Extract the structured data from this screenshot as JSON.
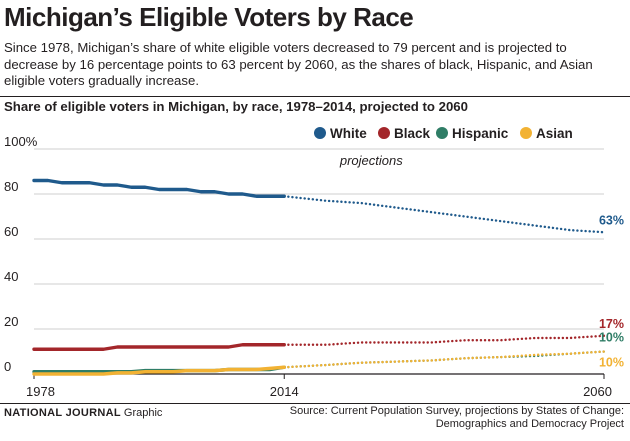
{
  "header": {
    "title": "Michigan’s Eligible Voters by Race",
    "dek": "Since 1978, Michigan’s share of white eligible voters decreased to 79 percent and is projected to decrease by 16 percentage points to 63 percent by 2060, as the shares of black, Hispanic, and Asian eligible voters gradually increase."
  },
  "footer": {
    "brand": "NATIONAL JOURNAL",
    "credit_suffix": "Graphic",
    "source": "Source: Current Population Survey, projections by States of Change: Demographics and Democracy Project"
  },
  "chart_data": {
    "type": "line",
    "title": "Share of eligible voters in Michigan, by race, 1978–2014, projected to 2060",
    "annotation": "projections",
    "xlabel": "",
    "ylabel": "",
    "xlim": [
      1978,
      2060
    ],
    "ylim": [
      0,
      100
    ],
    "y_ticks": [
      "0",
      "20",
      "40",
      "60",
      "80",
      "100%"
    ],
    "x_ticks": [
      "1978",
      "2014",
      "2060"
    ],
    "x_tick_values": [
      1978,
      2014,
      2060
    ],
    "projection_start": 2014,
    "grid": true,
    "legend_position": "top-right",
    "end_labels": [
      "63%",
      "17%",
      "10%",
      "10%"
    ],
    "series": [
      {
        "name": "White",
        "color": "#1f5a8c",
        "x": [
          1978,
          1980,
          1982,
          1984,
          1986,
          1988,
          1990,
          1992,
          1994,
          1996,
          1998,
          2000,
          2002,
          2004,
          2006,
          2008,
          2010,
          2012,
          2014
        ],
        "values": [
          86,
          86,
          85,
          85,
          85,
          84,
          84,
          83,
          83,
          82,
          82,
          82,
          81,
          81,
          80,
          80,
          79,
          79,
          79
        ],
        "projection_x": [
          2014,
          2020,
          2025,
          2030,
          2035,
          2040,
          2045,
          2050,
          2055,
          2060
        ],
        "projection_values": [
          79,
          77,
          76,
          74,
          72,
          70,
          68,
          66,
          64,
          63
        ]
      },
      {
        "name": "Black",
        "color": "#a3262a",
        "x": [
          1978,
          1980,
          1982,
          1984,
          1986,
          1988,
          1990,
          1992,
          1994,
          1996,
          1998,
          2000,
          2002,
          2004,
          2006,
          2008,
          2010,
          2012,
          2014
        ],
        "values": [
          11,
          11,
          11,
          11,
          11,
          11,
          12,
          12,
          12,
          12,
          12,
          12,
          12,
          12,
          12,
          13,
          13,
          13,
          13
        ],
        "projection_x": [
          2014,
          2020,
          2025,
          2030,
          2035,
          2040,
          2045,
          2050,
          2055,
          2060
        ],
        "projection_values": [
          13,
          13,
          14,
          14,
          14,
          15,
          15,
          16,
          16,
          17
        ]
      },
      {
        "name": "Hispanic",
        "color": "#2f7d66",
        "x": [
          1978,
          1980,
          1982,
          1984,
          1986,
          1988,
          1990,
          1992,
          1994,
          1996,
          1998,
          2000,
          2002,
          2004,
          2006,
          2008,
          2010,
          2012,
          2014
        ],
        "values": [
          1,
          1,
          1,
          1,
          1,
          1,
          1,
          1,
          1.5,
          1.5,
          1.5,
          1.5,
          1.5,
          1.5,
          2,
          2,
          2,
          2,
          3
        ],
        "projection_x": [
          2014,
          2020,
          2025,
          2030,
          2035,
          2040,
          2045,
          2050,
          2055,
          2060
        ],
        "projection_values": [
          3,
          4,
          5,
          5.5,
          6,
          7,
          7.5,
          8,
          9,
          10
        ]
      },
      {
        "name": "Asian",
        "color": "#f2b233",
        "x": [
          1978,
          1980,
          1982,
          1984,
          1986,
          1988,
          1990,
          1992,
          1994,
          1996,
          1998,
          2000,
          2002,
          2004,
          2006,
          2008,
          2010,
          2012,
          2014
        ],
        "values": [
          0,
          0,
          0,
          0,
          0,
          0,
          0.5,
          0.5,
          1,
          1,
          1,
          1.5,
          1.5,
          1.5,
          2,
          2,
          2,
          2.5,
          3
        ],
        "projection_x": [
          2014,
          2020,
          2025,
          2030,
          2035,
          2040,
          2045,
          2050,
          2055,
          2060
        ],
        "projection_values": [
          3,
          4,
          5,
          5.5,
          6,
          7,
          7.5,
          8.5,
          9,
          10
        ]
      }
    ]
  }
}
